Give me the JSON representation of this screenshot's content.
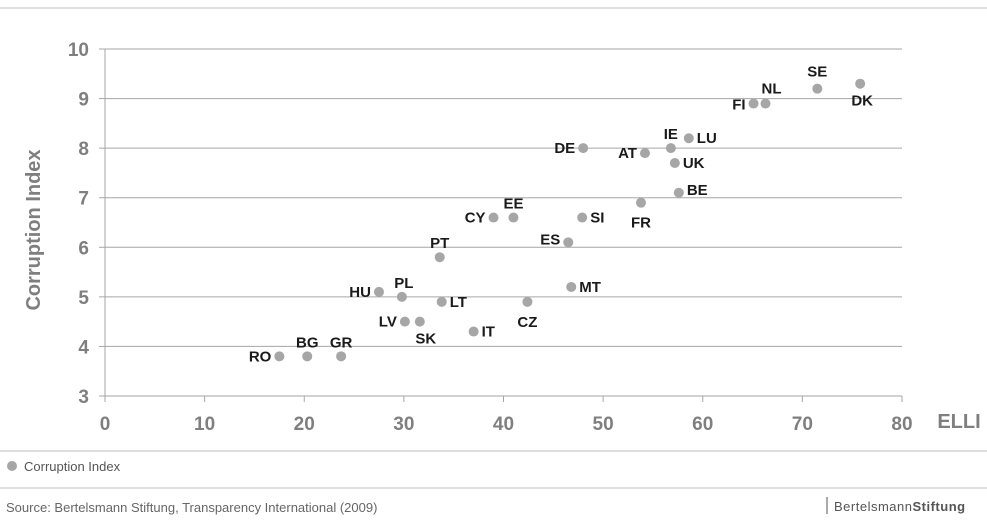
{
  "chart_data": {
    "type": "scatter",
    "xlabel": "ELLI",
    "ylabel": "Corruption Index",
    "xlim": [
      0,
      80
    ],
    "ylim": [
      3,
      10
    ],
    "xticks": [
      "0",
      "10",
      "20",
      "30",
      "40",
      "50",
      "60",
      "70",
      "80"
    ],
    "yticks": [
      "3",
      "4",
      "5",
      "6",
      "7",
      "8",
      "9",
      "10"
    ],
    "grid": "horizontal",
    "legend_position": "bottom-left",
    "series": [
      {
        "name": "Corruption Index",
        "color": "#a6a6a6",
        "points": [
          {
            "label": "RO",
            "x": 17.5,
            "y": 3.8
          },
          {
            "label": "BG",
            "x": 20.3,
            "y": 3.8
          },
          {
            "label": "GR",
            "x": 23.7,
            "y": 3.8
          },
          {
            "label": "HU",
            "x": 27.5,
            "y": 5.1
          },
          {
            "label": "PL",
            "x": 29.8,
            "y": 5.0
          },
          {
            "label": "LV",
            "x": 30.1,
            "y": 4.5
          },
          {
            "label": "SK",
            "x": 31.6,
            "y": 4.5
          },
          {
            "label": "PT",
            "x": 33.6,
            "y": 5.8
          },
          {
            "label": "LT",
            "x": 33.8,
            "y": 4.9
          },
          {
            "label": "IT",
            "x": 37.0,
            "y": 4.3
          },
          {
            "label": "CY",
            "x": 39.0,
            "y": 6.6
          },
          {
            "label": "EE",
            "x": 41.0,
            "y": 6.6
          },
          {
            "label": "CZ",
            "x": 42.4,
            "y": 4.9
          },
          {
            "label": "ES",
            "x": 46.5,
            "y": 6.1
          },
          {
            "label": "MT",
            "x": 46.8,
            "y": 5.2
          },
          {
            "label": "SI",
            "x": 47.9,
            "y": 6.6
          },
          {
            "label": "DE",
            "x": 48.0,
            "y": 8.0
          },
          {
            "label": "FR",
            "x": 53.8,
            "y": 6.9
          },
          {
            "label": "AT",
            "x": 54.2,
            "y": 7.9
          },
          {
            "label": "IE",
            "x": 56.8,
            "y": 8.0
          },
          {
            "label": "UK",
            "x": 57.2,
            "y": 7.7
          },
          {
            "label": "BE",
            "x": 57.6,
            "y": 7.1
          },
          {
            "label": "LU",
            "x": 58.6,
            "y": 8.2
          },
          {
            "label": "FI",
            "x": 65.1,
            "y": 8.9
          },
          {
            "label": "NL",
            "x": 66.3,
            "y": 8.9
          },
          {
            "label": "SE",
            "x": 71.5,
            "y": 9.2
          },
          {
            "label": "DK",
            "x": 75.8,
            "y": 9.3
          }
        ]
      }
    ]
  },
  "legend": {
    "label": "Corruption Index"
  },
  "footer": {
    "source": "Source: Bertelsmann Stiftung, Transparency International (2009)",
    "brand_light": "Bertelsmann",
    "brand_bold": "Stiftung"
  }
}
